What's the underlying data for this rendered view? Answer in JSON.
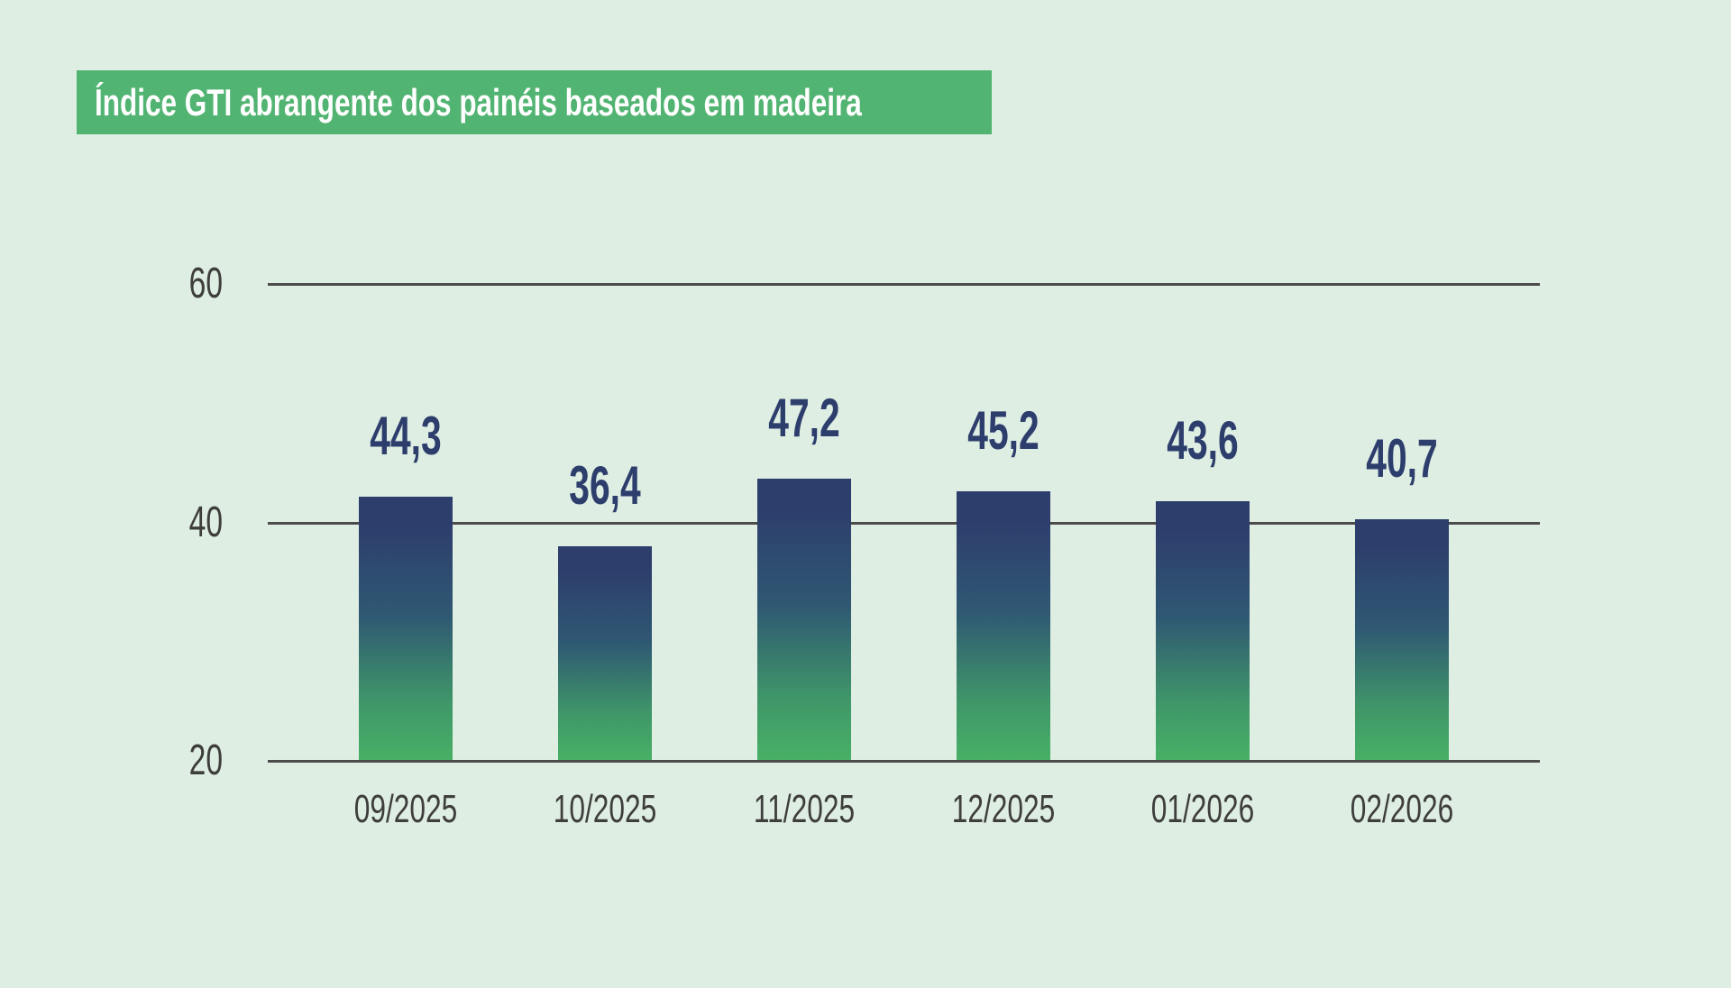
{
  "colors": {
    "bg": "#dfeee3",
    "banner": "#52b472",
    "banner-text": "#ffffff",
    "grid": "#4b4b4b",
    "axis-text": "#3e3e3c",
    "value-text": "#2d3e6d",
    "bar-navy": "#2d3d6c",
    "bar-teal": "#2f5873",
    "bar-seagreen": "#3f9669",
    "bar-green": "#48b066"
  },
  "chart_data": {
    "type": "bar",
    "title": "Índice GTI abrangente dos painéis baseados em madeira",
    "categories": [
      "09/2025",
      "10/2025",
      "11/2025",
      "12/2025",
      "01/2026",
      "02/2026"
    ],
    "values": [
      44.3,
      36.4,
      47.2,
      45.2,
      43.6,
      40.7
    ],
    "value_labels": [
      "44,3",
      "36,4",
      "47,2",
      "45,2",
      "43,6",
      "40,7"
    ],
    "decimal_separator": ",",
    "xlabel": "",
    "ylabel": "",
    "yticks": [
      20,
      40,
      60
    ],
    "ylim": [
      20,
      60
    ],
    "grid": "horizontal",
    "legend_position": "none",
    "bar_style": "vertical-gradient-navy-to-green",
    "data_labels": "above-bars"
  }
}
